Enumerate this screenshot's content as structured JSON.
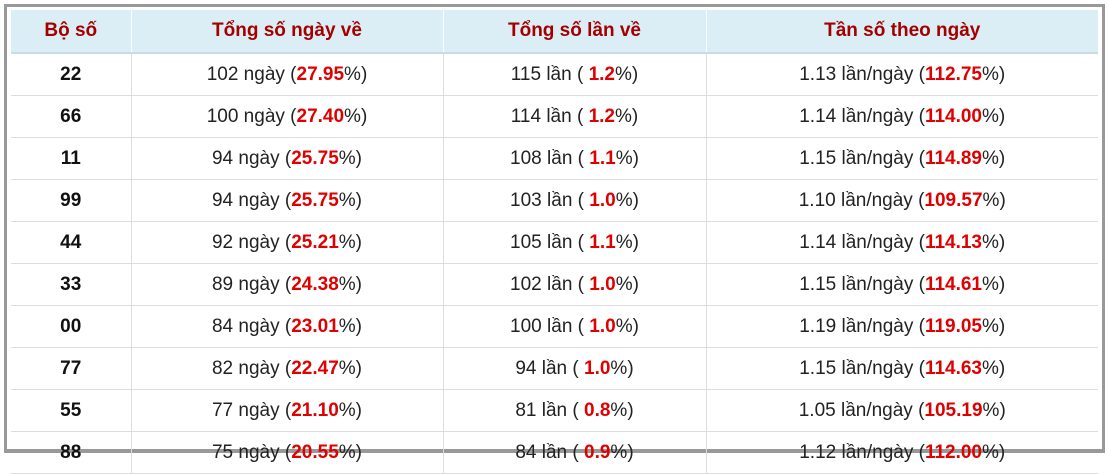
{
  "table": {
    "headers": [
      "Bộ số",
      "Tổng số ngày về",
      "Tổng số lần về",
      "Tần số theo ngày"
    ],
    "rows": [
      {
        "pair": "22",
        "days": [
          "102 ngày (",
          "27.95",
          "%)"
        ],
        "times": [
          "115 lần ( ",
          "1.2",
          "%)"
        ],
        "freq": [
          "1.13 lần/ngày (",
          "112.75",
          "%)"
        ]
      },
      {
        "pair": "66",
        "days": [
          "100 ngày (",
          "27.40",
          "%)"
        ],
        "times": [
          "114 lần ( ",
          "1.2",
          "%)"
        ],
        "freq": [
          "1.14 lần/ngày (",
          "114.00",
          "%)"
        ]
      },
      {
        "pair": "11",
        "days": [
          "94 ngày (",
          "25.75",
          "%)"
        ],
        "times": [
          "108 lần ( ",
          "1.1",
          "%)"
        ],
        "freq": [
          "1.15 lần/ngày (",
          "114.89",
          "%)"
        ]
      },
      {
        "pair": "99",
        "days": [
          "94 ngày (",
          "25.75",
          "%)"
        ],
        "times": [
          "103 lần ( ",
          "1.0",
          "%)"
        ],
        "freq": [
          "1.10 lần/ngày (",
          "109.57",
          "%)"
        ]
      },
      {
        "pair": "44",
        "days": [
          "92 ngày (",
          "25.21",
          "%)"
        ],
        "times": [
          "105 lần ( ",
          "1.1",
          "%)"
        ],
        "freq": [
          "1.14 lần/ngày (",
          "114.13",
          "%)"
        ]
      },
      {
        "pair": "33",
        "days": [
          "89 ngày (",
          "24.38",
          "%)"
        ],
        "times": [
          "102 lần ( ",
          "1.0",
          "%)"
        ],
        "freq": [
          "1.15 lần/ngày (",
          "114.61",
          "%)"
        ]
      },
      {
        "pair": "00",
        "days": [
          "84 ngày (",
          "23.01",
          "%)"
        ],
        "times": [
          "100 lần ( ",
          "1.0",
          "%)"
        ],
        "freq": [
          "1.19 lần/ngày (",
          "119.05",
          "%)"
        ]
      },
      {
        "pair": "77",
        "days": [
          "82 ngày (",
          "22.47",
          "%)"
        ],
        "times": [
          "94 lần ( ",
          "1.0",
          "%)"
        ],
        "freq": [
          "1.15 lần/ngày (",
          "114.63",
          "%)"
        ]
      },
      {
        "pair": "55",
        "days": [
          "77 ngày (",
          "21.10",
          "%)"
        ],
        "times": [
          "81 lần ( ",
          "0.8",
          "%)"
        ],
        "freq": [
          "1.05 lần/ngày (",
          "105.19",
          "%)"
        ]
      },
      {
        "pair": "88",
        "days": [
          "75 ngày (",
          "20.55",
          "%)"
        ],
        "times": [
          "84 lần ( ",
          "0.9",
          "%)"
        ],
        "freq": [
          "1.12 lần/ngày (",
          "112.00",
          "%)"
        ]
      }
    ]
  }
}
